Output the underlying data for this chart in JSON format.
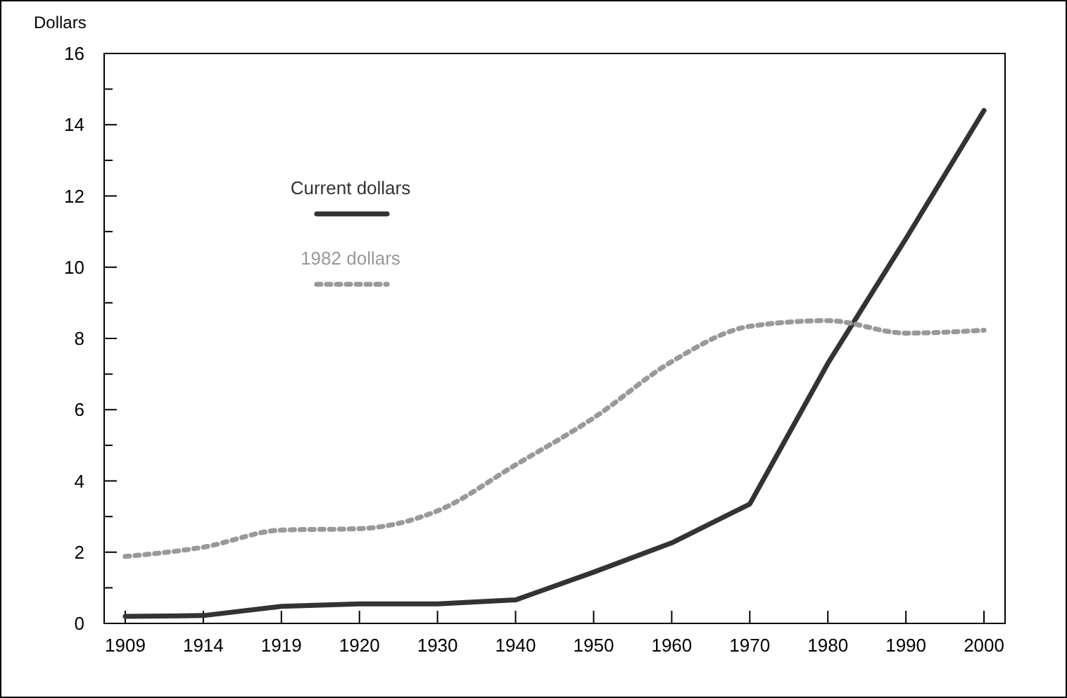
{
  "chart_data": {
    "type": "line",
    "ylabel": "Dollars",
    "categories": [
      "1909",
      "1914",
      "1919",
      "1920",
      "1930",
      "1940",
      "1950",
      "1960",
      "1970",
      "1980",
      "1990",
      "2000"
    ],
    "series": [
      {
        "name": "Current dollars",
        "color": "#333333",
        "line_style": "solid",
        "values": [
          0.2,
          0.22,
          0.48,
          0.55,
          0.55,
          0.66,
          1.44,
          2.26,
          3.35,
          7.3,
          10.8,
          14.4
        ]
      },
      {
        "name": "1982 dollars",
        "color": "#999999",
        "line_style": "dotted",
        "values": [
          1.88,
          2.14,
          2.62,
          2.66,
          3.16,
          4.45,
          5.77,
          7.35,
          8.34,
          8.5,
          8.15,
          8.23
        ]
      }
    ],
    "ylim": [
      0,
      16
    ],
    "yticks": [
      0,
      {
        "value": 1,
        "label": null
      },
      2,
      {
        "value": 3,
        "label": null
      },
      4,
      {
        "value": 5,
        "label": null
      },
      6,
      {
        "value": 7,
        "label": null
      },
      8,
      {
        "value": 9,
        "label": null
      },
      10,
      {
        "value": 11,
        "label": null
      },
      12,
      {
        "value": 13,
        "label": null
      },
      14,
      {
        "value": 15,
        "label": null
      },
      16
    ],
    "grid": false,
    "legend": "top left",
    "marker": "none"
  }
}
